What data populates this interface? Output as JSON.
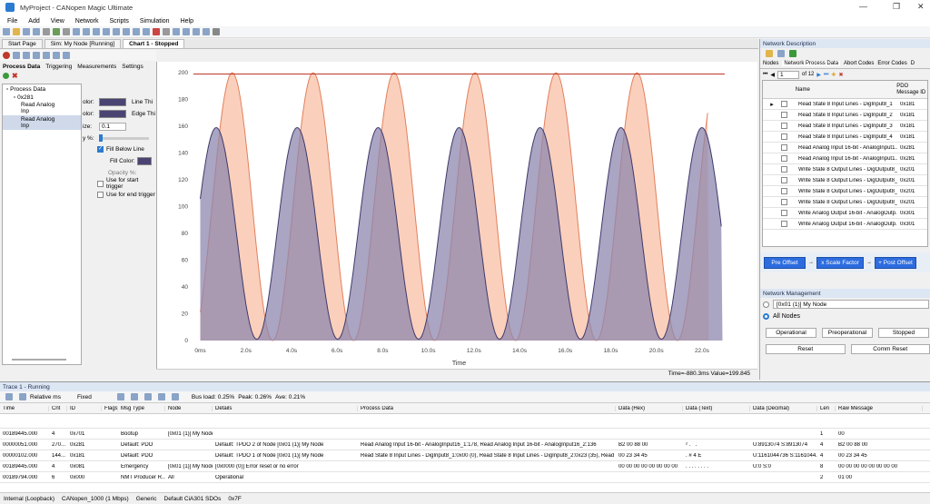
{
  "app": {
    "title": "MyProject - CANopen Magic Ultimate",
    "win_min": "—",
    "win_max": "❐",
    "win_close": "✕"
  },
  "menu": [
    "File",
    "Add",
    "View",
    "Network",
    "Scripts",
    "Simulation",
    "Help"
  ],
  "tabs": [
    {
      "label": "Start Page"
    },
    {
      "label": "Sim: My Node [Running]"
    },
    {
      "label": "Chart 1 - Stopped"
    }
  ],
  "chart_panel": {
    "subtabs": [
      "Process Data",
      "Triggering",
      "Measurements",
      "Settings"
    ],
    "tree": {
      "root": "Process Data",
      "node": "0x281",
      "items": [
        "Read Analog Inp",
        "Read Analog Inp"
      ]
    },
    "props": {
      "color_label": "olor:",
      "color2_label": "olor:",
      "size_label": "ize:",
      "size_value": "0.1",
      "opacity_label": "y %:",
      "line_thick": "Line Thi",
      "edge_thick": "Edge Thi",
      "fill_below": "Fill Below Line",
      "fill_color": "Fill Color:",
      "opacity2": "Opacity %:",
      "start_trigger": "Use for start trigger",
      "end_trigger": "Use for end trigger"
    },
    "status_text": "Time=-880.3ms Value=199.845",
    "colors": {
      "series1": "#f9c8b0",
      "series1_line": "#e37f5c",
      "series2": "#8d87ad",
      "series2_line": "#3f3a6b",
      "limit": "#c0392b"
    }
  },
  "chart_data": {
    "type": "area",
    "xlabel": "Time",
    "ylabel": "",
    "ylim": [
      0,
      200
    ],
    "xlim": [
      -0.3,
      23
    ],
    "x_ticks": [
      "0ms",
      "2.0s",
      "4.0s",
      "6.0s",
      "8.0s",
      "10.0s",
      "12.0s",
      "14.0s",
      "16.0s",
      "18.0s",
      "20.0s",
      "22.0s"
    ],
    "y_ticks": [
      0,
      20,
      40,
      60,
      80,
      100,
      120,
      140,
      160,
      180,
      200
    ],
    "series": [
      {
        "name": "",
        "kind": "sine",
        "amplitude": 100,
        "offset": 100,
        "period": 3.55,
        "phase_peak": 1.4,
        "end": 22.3
      },
      {
        "name": "",
        "kind": "sine",
        "amplitude": 79,
        "offset": 80,
        "period": 3.55,
        "phase_peak": 0.7,
        "end": 22.9
      }
    ],
    "limit_line": 199
  },
  "net_desc": {
    "title": "Network Description",
    "tabs": [
      "Nodes",
      "Network Process Data",
      "Abort Codes",
      "Error Codes",
      "D"
    ],
    "pager": {
      "page": "1",
      "of": "of 12"
    },
    "columns": [
      "Name",
      "PDO Message ID"
    ],
    "rows": [
      {
        "name": "Read State 8 Input Lines - DigInput8_1",
        "id": "0x181"
      },
      {
        "name": "Read State 8 Input Lines - DigInput8_2",
        "id": "0x181"
      },
      {
        "name": "Read State 8 Input Lines - DigInput8_3",
        "id": "0x181"
      },
      {
        "name": "Read State 8 Input Lines - DigInput8_4",
        "id": "0x181"
      },
      {
        "name": "Read Analog Input 16-bit - AnalogInput1...",
        "id": "0x281"
      },
      {
        "name": "Read Analog Input 16-bit - AnalogInput1...",
        "id": "0x281"
      },
      {
        "name": "Write State 8 Output Lines - DigOutput8_1",
        "id": "0x201"
      },
      {
        "name": "Write State 8 Output Lines - DigOutput8_2",
        "id": "0x201"
      },
      {
        "name": "Write State 8 Output Lines - DigOutput8_3",
        "id": "0x201"
      },
      {
        "name": "Write State 8 Output Lines - DigOutput8_4",
        "id": "0x201"
      },
      {
        "name": "Write Analog Output 16-bit - AnalogOutp...",
        "id": "0x301"
      },
      {
        "name": "Write Analog Output 16-bit - AnalogOutp...",
        "id": "0x301"
      }
    ],
    "flow": [
      "Pre Offset",
      "x Scale Factor",
      "+ Post Offset"
    ]
  },
  "net_mgmt": {
    "title": "Network Management",
    "node_select": "[0x01 (1)] My Node",
    "all_nodes": "All Nodes",
    "buttons": [
      "Operational",
      "Preoperational",
      "Stopped",
      "Reset",
      "Comm Reset"
    ]
  },
  "trace": {
    "title": "Trace 1 - Running",
    "toolbar": {
      "time_mode": "Relative ms",
      "fixed": "Fixed",
      "bus_load": "Bus load: 0.25%",
      "peak": "Peak: 0.26%",
      "avg": "Ave: 0.21%"
    },
    "columns": [
      "Time",
      "Cnt",
      "ID",
      "Flags",
      "Msg Type",
      "Node",
      "Details",
      "Process Data",
      "Data (Hex)",
      "Data (Text)",
      "Data (Decimal)",
      "Len",
      "Raw Message"
    ],
    "rows": [
      [
        "00189445.000",
        "4",
        "0x701",
        "",
        "Bootup",
        "[0x01 (1)] My Node",
        "",
        "",
        "",
        "",
        "",
        "1",
        "00"
      ],
      [
        "00000051.000",
        "270...",
        "0x281",
        "",
        "Default: PDO",
        "",
        "Default: TPDO 2 of Node [0x01 (1)] My Node",
        "Read Analog Input 16-bit - AnalogInput16_1:178, Read Analog Input 16-bit - AnalogInput16_2:136",
        "B2 00 88 00",
        "²  .  ˆ  .",
        "U:8913074 S:8913074",
        "4",
        "B2 00 88 00"
      ],
      [
        "00000102.000",
        "144...",
        "0x181",
        "",
        "Default: PDO",
        "",
        "Default: TPDO 1 of Node [0x01 (1)] My Node",
        "Read State 8 Input Lines - DigInput8_1:0x00 (0), Read State 8 Input Lines - DigInput8_2:0x23 (35), Read Sta...",
        "00 23 34 45",
        ". # 4 E",
        "U:1161044736 S:1161044...",
        "4",
        "00 23 34 45"
      ],
      [
        "00189445.000",
        "4",
        "0x081",
        "",
        "Emergency",
        "[0x01 (1)] My Node",
        "[0x0000 (0)] Error reset or no error",
        "",
        "00 00 00 00 00 00 00 00",
        ". . . . . . . .",
        "U:0 S:0",
        "8",
        "00 00 00 00 00 00 00 00"
      ],
      [
        "00189794.000",
        "6",
        "0x000",
        "",
        "NMT Producer R...",
        "All",
        "Operational",
        "",
        "",
        "",
        "",
        "2",
        "01 00"
      ]
    ]
  },
  "statusbar": [
    "Internal (Loopback)",
    "CANopen_1000 (1 Mbps)",
    "Generic",
    "Default CiA301 SDOs",
    "0x7F"
  ]
}
